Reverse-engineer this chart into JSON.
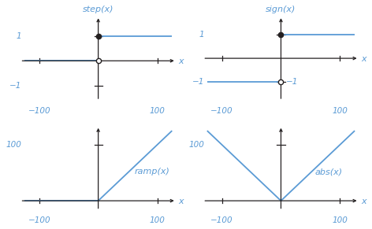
{
  "line_color": "#5b9bd5",
  "axis_color": "#231f20",
  "bg_color": "#ffffff",
  "tick_label_color": "#5b9bd5",
  "title_color": "#5b9bd5",
  "xlabel_color": "#5b9bd5",
  "step_title": "step(x)",
  "sign_title": "sign(x)",
  "ramp_title": "ramp(x)",
  "abs_title": "abs(x)",
  "font_size_title": 8,
  "font_size_tick": 7.5,
  "font_size_label": 8,
  "font_size_func": 8
}
